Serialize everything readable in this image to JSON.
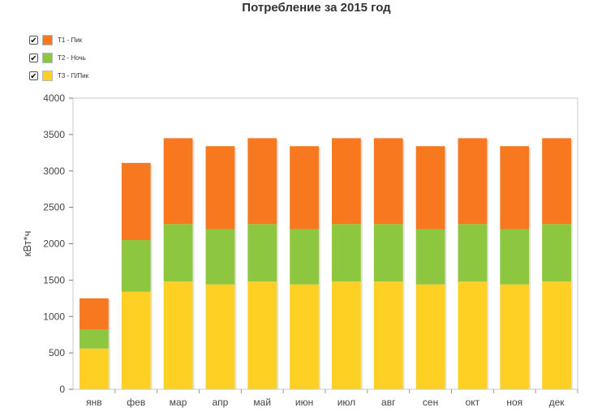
{
  "chart_data": {
    "type": "bar",
    "stacked": true,
    "title": "Потребление за 2015 год",
    "xlabel": "",
    "ylabel": "кВт*ч",
    "ylim": [
      0,
      4000
    ],
    "yticks": [
      0,
      500,
      1000,
      1500,
      2000,
      2500,
      3000,
      3500,
      4000
    ],
    "categories": [
      "янв",
      "фев",
      "мар",
      "апр",
      "май",
      "июн",
      "июл",
      "авг",
      "сен",
      "окт",
      "ноя",
      "дек"
    ],
    "series": [
      {
        "name": "Т3 - П/Пик",
        "color": "#fdd023",
        "values": [
          560,
          1340,
          1480,
          1440,
          1480,
          1440,
          1480,
          1480,
          1440,
          1480,
          1440,
          1480
        ]
      },
      {
        "name": "Т2 - Ночь",
        "color": "#8dc63f",
        "values": [
          260,
          710,
          790,
          760,
          790,
          760,
          790,
          790,
          760,
          790,
          760,
          790
        ]
      },
      {
        "name": "Т1 - Пик",
        "color": "#f7781f",
        "values": [
          430,
          1060,
          1180,
          1140,
          1180,
          1140,
          1180,
          1180,
          1140,
          1180,
          1140,
          1180
        ]
      }
    ],
    "legend": {
      "position": "top-left",
      "items": [
        {
          "label": "Т1 - Пик",
          "color": "#f7781f",
          "checked": true
        },
        {
          "label": "Т2 - Ночь",
          "color": "#8dc63f",
          "checked": true
        },
        {
          "label": "Т3 - П/Пик",
          "color": "#fdd023",
          "checked": true
        }
      ]
    },
    "grid": false
  }
}
